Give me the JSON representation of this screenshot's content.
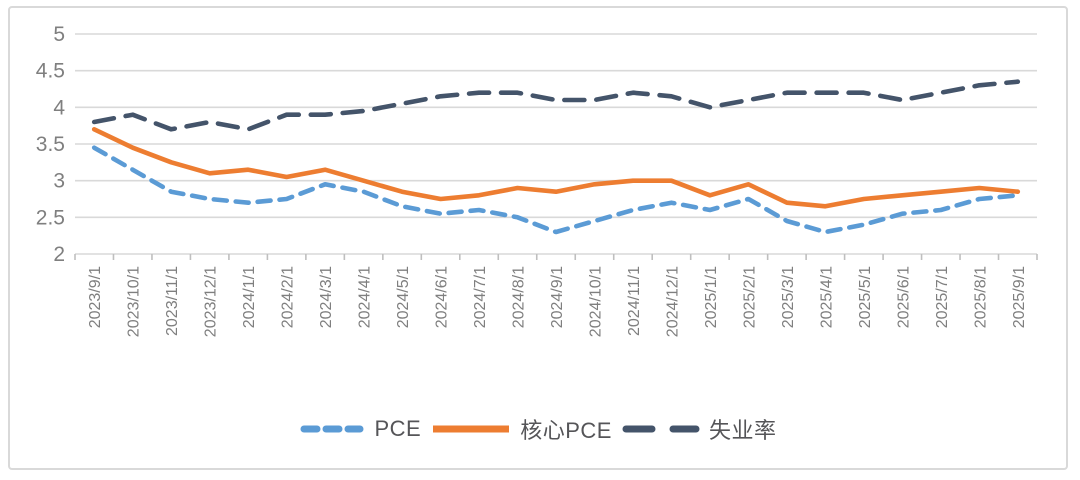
{
  "chart_data": {
    "type": "line",
    "title": "",
    "xlabel": "",
    "ylabel": "",
    "ylim": [
      2,
      5
    ],
    "yticks": [
      5,
      4.5,
      4,
      3.5,
      3,
      2.5,
      2
    ],
    "grid": "horizontal",
    "legend_position": "bottom",
    "categories": [
      "2023/9/1",
      "2023/10/1",
      "2023/11/1",
      "2023/12/1",
      "2024/1/1",
      "2024/2/1",
      "2024/3/1",
      "2024/4/1",
      "2024/5/1",
      "2024/6/1",
      "2024/7/1",
      "2024/8/1",
      "2024/9/1",
      "2024/10/1",
      "2024/11/1",
      "2024/12/1",
      "2025/1/1",
      "2025/2/1",
      "2025/3/1",
      "2025/4/1",
      "2025/5/1",
      "2025/6/1",
      "2025/7/1",
      "2025/8/1",
      "2025/9/1"
    ],
    "series": [
      {
        "name": "PCE",
        "color": "#5B9BD5",
        "style": "dashed",
        "values": [
          3.45,
          3.15,
          2.85,
          2.75,
          2.7,
          2.75,
          2.95,
          2.85,
          2.65,
          2.55,
          2.6,
          2.5,
          2.3,
          2.45,
          2.6,
          2.7,
          2.6,
          2.75,
          2.45,
          2.3,
          2.4,
          2.55,
          2.6,
          2.75,
          2.8
        ]
      },
      {
        "name": "核心PCE",
        "color": "#ED7D31",
        "style": "solid",
        "values": [
          3.7,
          3.45,
          3.25,
          3.1,
          3.15,
          3.05,
          3.15,
          3.0,
          2.85,
          2.75,
          2.8,
          2.9,
          2.85,
          2.95,
          3.0,
          3.0,
          2.8,
          2.95,
          2.7,
          2.65,
          2.75,
          2.8,
          2.85,
          2.9,
          2.85
        ]
      },
      {
        "name": "失业率",
        "color": "#44546A",
        "style": "long-dashed",
        "values": [
          3.8,
          3.9,
          3.7,
          3.8,
          3.7,
          3.9,
          3.9,
          3.95,
          4.05,
          4.15,
          4.2,
          4.2,
          4.1,
          4.1,
          4.2,
          4.15,
          4.0,
          4.1,
          4.2,
          4.2,
          4.2,
          4.1,
          4.2,
          4.3,
          4.35
        ]
      }
    ]
  },
  "style": {
    "gridline_color": "#d9d9d9",
    "tick_color": "#bfbfbf",
    "axis_label_color": "#7f7f7f",
    "legend_text_color": "#555558",
    "background": "#ffffff",
    "border_color": "#d9d9d9"
  }
}
